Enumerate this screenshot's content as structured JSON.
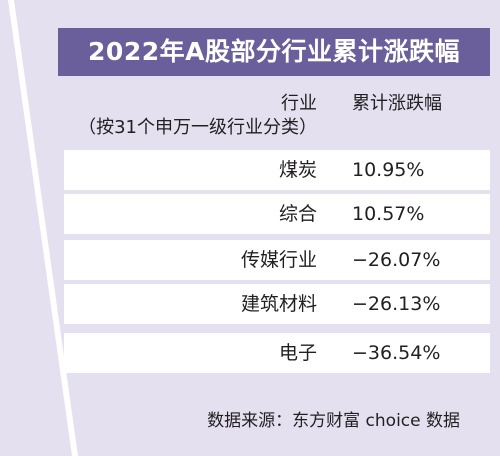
{
  "chart_data": {
    "type": "table",
    "title": "2022年A股部分行业累计涨跌幅",
    "columns": {
      "industry": "行业",
      "industry_note": "（按31个申万一级行业分类）",
      "change": "累计涨跌幅"
    },
    "rows": [
      {
        "industry": "煤炭",
        "change": "10.95%",
        "value": 10.95
      },
      {
        "industry": "综合",
        "change": "10.57%",
        "value": 10.57
      },
      {
        "industry": "传媒行业",
        "change": "−26.07%",
        "value": -26.07
      },
      {
        "industry": "建筑材料",
        "change": "−26.13%",
        "value": -26.13
      },
      {
        "industry": "电子",
        "change": "−36.54%",
        "value": -36.54
      }
    ],
    "source": "数据来源：东方财富 choice 数据"
  },
  "colors": {
    "background": "#e4e0ef",
    "title_bar": "#6a5e9b",
    "title_text": "#ffffff",
    "row_band": "#ffffff",
    "text": "#231f20"
  }
}
